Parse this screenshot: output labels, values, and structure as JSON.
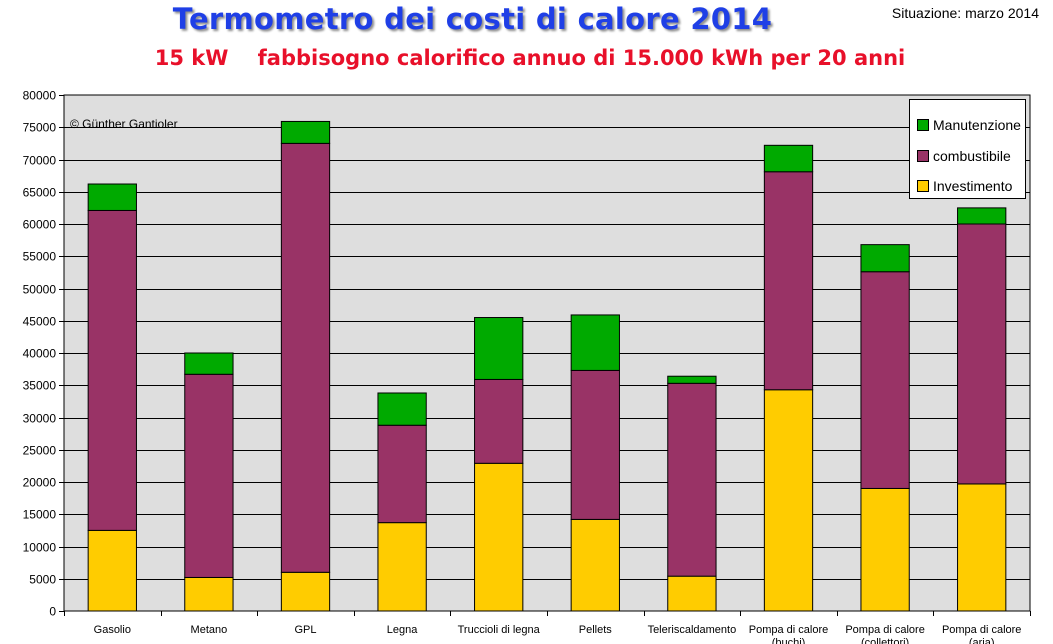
{
  "header": {
    "title": "Termometro dei costi di calore 2014",
    "subtitle": "15 kW    fabbisogno calorifico annuo di 15.000 kWh per 20 anni",
    "situation": "Situazione: marzo 2014"
  },
  "chart_data": {
    "type": "bar",
    "stacked": true,
    "title": "Termometro dei costi di calore 2014",
    "subtitle": "15 kW    fabbisogno calorifico annuo di 15.000 kWh per 20 anni",
    "annotation": "© Günther Gantioler",
    "categories": [
      "Gasolio",
      "Metano",
      "GPL",
      "Legna",
      "Truccioli di legna",
      "Pellets",
      "Teleriscaldamento",
      "Pompa di calore (buchi)",
      "Pompa di calore (collettori)",
      "Pompa di calore (aria)"
    ],
    "series": [
      {
        "name": "Investimento",
        "color": "#ffcc00",
        "values": [
          12500,
          5200,
          6000,
          13700,
          22900,
          14200,
          5400,
          34300,
          19000,
          19700
        ]
      },
      {
        "name": "combustibile",
        "color": "#993366",
        "values": [
          49600,
          31500,
          66500,
          15100,
          13000,
          23100,
          29900,
          33800,
          33600,
          40300
        ]
      },
      {
        "name": "Manutenzione",
        "color": "#00aa00",
        "values": [
          4100,
          3300,
          3400,
          5000,
          9600,
          8600,
          1100,
          4100,
          4200,
          2500
        ]
      }
    ],
    "legend_order": [
      "Manutenzione",
      "combustibile",
      "Investimento"
    ],
    "legend_position": "top-right",
    "ylim": [
      0,
      80000
    ],
    "ytick_step": 5000,
    "grid": true,
    "xlabel": "",
    "ylabel": "",
    "plot_background": "#dedede"
  }
}
